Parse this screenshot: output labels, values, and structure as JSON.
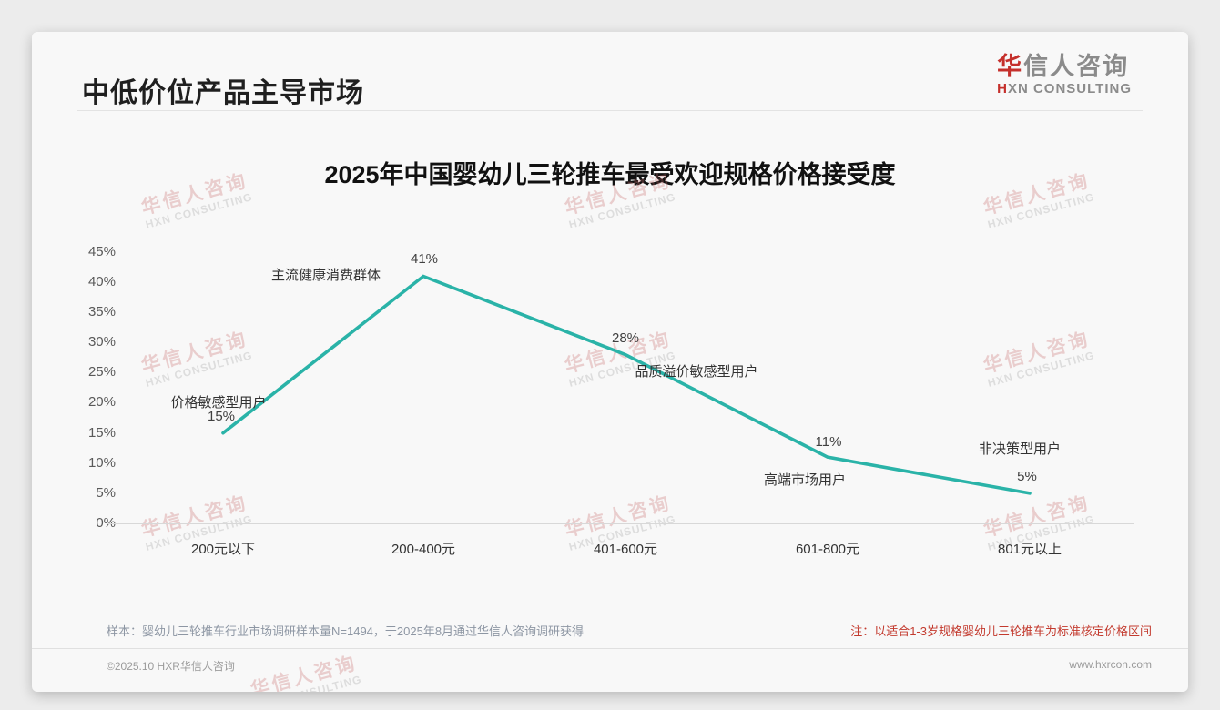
{
  "page": {
    "title": "中低价位产品主导市场",
    "logo": {
      "cn_accent": "华",
      "cn_rest": "信人咨询",
      "en_accent": "H",
      "en_rest": "XN CONSULTING"
    },
    "watermark": {
      "line1": "华信人咨询",
      "line2": "HXN CONSULTING"
    },
    "footer": {
      "sample_note": "样本：婴幼儿三轮推车行业市场调研样本量N=1494，于2025年8月通过华信人咨询调研获得",
      "price_note": "注：以适合1-3岁规格婴幼儿三轮推车为标准核定价格区间",
      "copyright": "©2025.10 HXR华信人咨询",
      "website": "www.hxrcon.com"
    }
  },
  "chart_data": {
    "type": "line",
    "title": "2025年中国婴幼儿三轮推车最受欢迎规格价格接受度",
    "categories": [
      "200元以下",
      "200-400元",
      "401-600元",
      "601-800元",
      "801元以上"
    ],
    "values": [
      15,
      41,
      28,
      11,
      5
    ],
    "value_labels": [
      "15%",
      "41%",
      "28%",
      "11%",
      "5%"
    ],
    "point_annotations": [
      "价格敏感型用户",
      "主流健康消费群体",
      "品质溢价敏感型用户",
      "高端市场用户",
      "非决策型用户"
    ],
    "yticks": [
      "45%",
      "40%",
      "35%",
      "30%",
      "25%",
      "20%",
      "15%",
      "10%",
      "5%",
      "0%"
    ],
    "ylim": [
      0,
      45
    ],
    "xlabel": "",
    "ylabel": "",
    "grid": false,
    "legend": false,
    "line_color": "#2ab3a8"
  }
}
